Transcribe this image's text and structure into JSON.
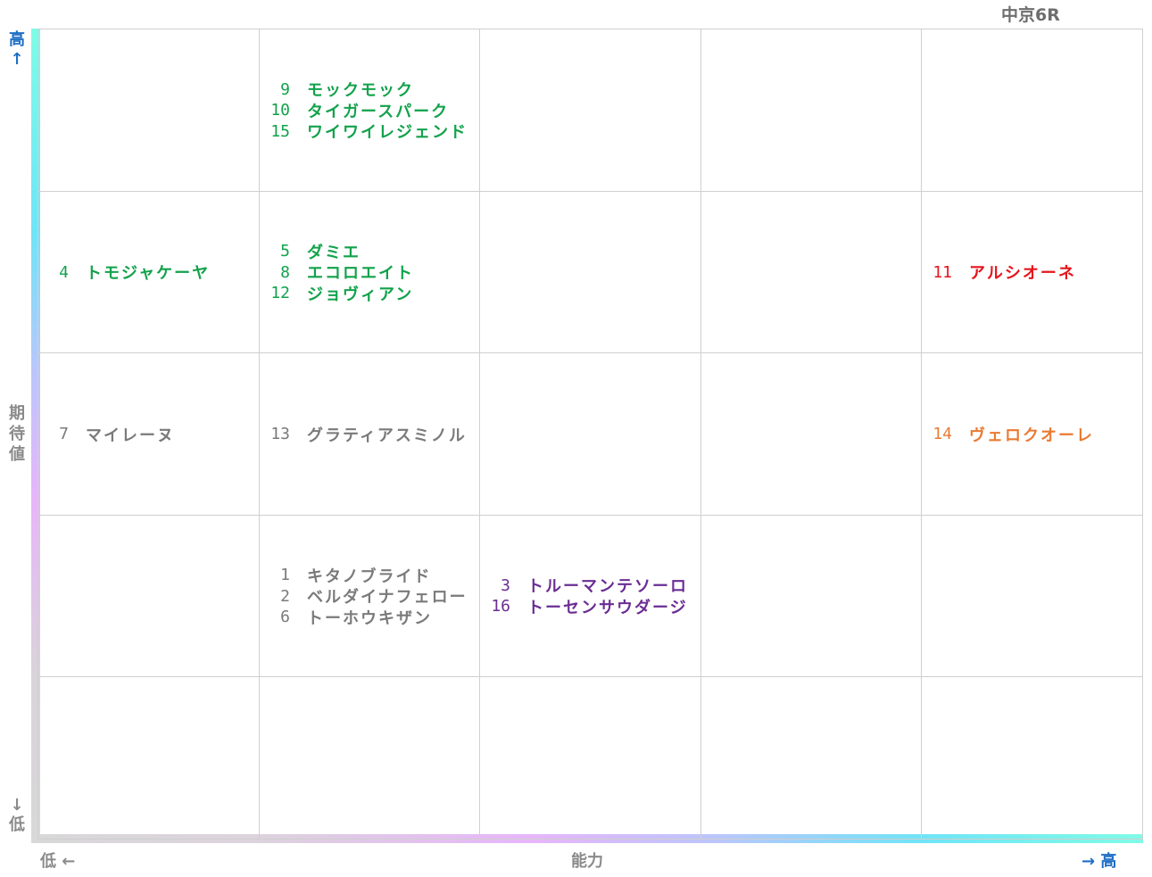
{
  "race_label": "中京6R",
  "axes": {
    "y_label": "期待値",
    "y_high": "高↑",
    "y_low": "↓低",
    "x_label": "能力",
    "x_low": "低 ←",
    "x_high": "→ 高"
  },
  "colors": {
    "green": "#12a24b",
    "gray": "#7a7a7a",
    "red": "#e5141c",
    "orange": "#ea7a32",
    "purple": "#6a2d94",
    "grid": "#cfcfcf",
    "axis_high": "#1f6fc5"
  },
  "chart_data": {
    "type": "table",
    "columns": 5,
    "rows": 5,
    "x_axis": "能力",
    "y_axis": "期待値",
    "cells": [
      {
        "col": 1,
        "row": 4,
        "color": "green",
        "entries": [
          {
            "num": "9",
            "name": "モックモック"
          },
          {
            "num": "10",
            "name": "タイガースパーク"
          },
          {
            "num": "15",
            "name": "ワイワイレジェンド"
          }
        ]
      },
      {
        "col": 0,
        "row": 3,
        "color": "green",
        "entries": [
          {
            "num": "4",
            "name": "トモジャケーヤ"
          }
        ]
      },
      {
        "col": 1,
        "row": 3,
        "color": "green",
        "entries": [
          {
            "num": "5",
            "name": "ダミエ"
          },
          {
            "num": "8",
            "name": "エコロエイト"
          },
          {
            "num": "12",
            "name": "ジョヴィアン"
          }
        ]
      },
      {
        "col": 4,
        "row": 3,
        "color": "red",
        "entries": [
          {
            "num": "11",
            "name": "アルシオーネ"
          }
        ]
      },
      {
        "col": 0,
        "row": 2,
        "color": "gray",
        "entries": [
          {
            "num": "7",
            "name": "マイレーヌ"
          }
        ]
      },
      {
        "col": 1,
        "row": 2,
        "color": "gray",
        "entries": [
          {
            "num": "13",
            "name": "グラティアスミノル"
          }
        ]
      },
      {
        "col": 4,
        "row": 2,
        "color": "orange",
        "entries": [
          {
            "num": "14",
            "name": "ヴェロクオーレ"
          }
        ]
      },
      {
        "col": 1,
        "row": 1,
        "color": "gray",
        "entries": [
          {
            "num": "1",
            "name": "キタノブライド"
          },
          {
            "num": "2",
            "name": "ベルダイナフェロー"
          },
          {
            "num": "6",
            "name": "トーホウキザン"
          }
        ]
      },
      {
        "col": 2,
        "row": 1,
        "color": "purple",
        "entries": [
          {
            "num": "3",
            "name": "トルーマンテソーロ"
          },
          {
            "num": "16",
            "name": "トーセンサウダージ"
          }
        ]
      }
    ]
  }
}
